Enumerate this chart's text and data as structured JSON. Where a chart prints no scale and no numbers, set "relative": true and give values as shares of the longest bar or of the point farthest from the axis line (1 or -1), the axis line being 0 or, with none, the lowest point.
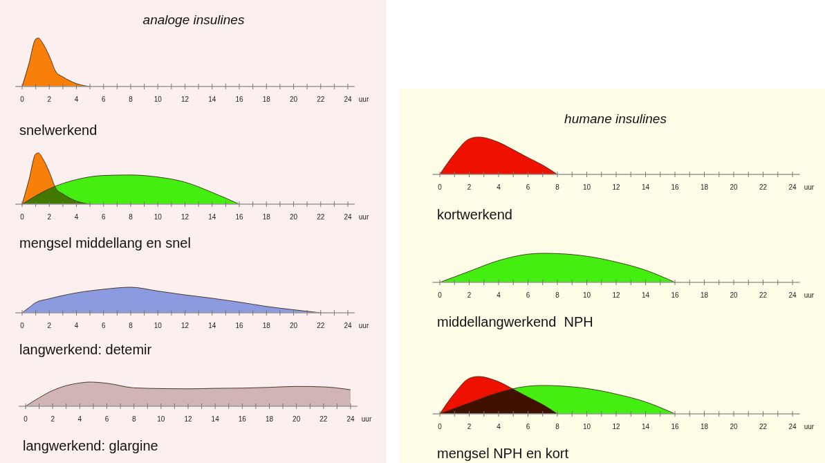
{
  "chart_data": [
    {
      "type": "area",
      "title": "analoge insulines",
      "subtitle": "snelwerkend",
      "xlabel": "uur",
      "relative": true,
      "xlim": [
        -0.5,
        24.5
      ],
      "xticks": [
        0,
        {
          "value": 1,
          "label": null
        },
        2,
        {
          "value": 3,
          "label": null
        },
        4,
        {
          "value": 5,
          "label": null
        },
        6,
        {
          "value": 7,
          "label": null
        },
        8,
        {
          "value": 9,
          "label": null
        },
        10,
        {
          "value": 11,
          "label": null
        },
        12,
        {
          "value": 13,
          "label": null
        },
        14,
        {
          "value": 15,
          "label": null
        },
        16,
        {
          "value": 17,
          "label": null
        },
        18,
        {
          "value": 19,
          "label": null
        },
        20,
        {
          "value": 21,
          "label": null
        },
        22,
        {
          "value": 23,
          "label": null
        },
        24
      ],
      "series": [
        {
          "color": "#f77f0a",
          "x": [
            0,
            0.5,
            1,
            1.2,
            1.5,
            2,
            2.5,
            3,
            4,
            5
          ],
          "values": [
            0,
            0.47,
            0.98,
            1,
            0.9,
            0.63,
            0.3,
            0.2,
            0.06,
            0
          ]
        }
      ]
    },
    {
      "type": "area",
      "subtitle": "mengsel middellang en snel",
      "xlabel": "uur",
      "relative": true,
      "xlim": [
        -0.5,
        24.5
      ],
      "xticks": [
        0,
        {
          "value": 1,
          "label": null
        },
        2,
        {
          "value": 3,
          "label": null
        },
        4,
        {
          "value": 5,
          "label": null
        },
        6,
        {
          "value": 7,
          "label": null
        },
        8,
        {
          "value": 9,
          "label": null
        },
        10,
        {
          "value": 11,
          "label": null
        },
        12,
        {
          "value": 13,
          "label": null
        },
        14,
        {
          "value": 15,
          "label": null
        },
        16,
        {
          "value": 17,
          "label": null
        },
        18,
        {
          "value": 19,
          "label": null
        },
        20,
        {
          "value": 21,
          "label": null
        },
        22,
        {
          "value": 23,
          "label": null
        },
        24
      ],
      "series": [
        {
          "color": "#f77f0a",
          "x": [
            0,
            0.5,
            1,
            1.2,
            1.5,
            2,
            2.5,
            3,
            4,
            5
          ],
          "values": [
            0,
            0.47,
            0.98,
            1,
            0.9,
            0.63,
            0.3,
            0.2,
            0.06,
            0
          ]
        },
        {
          "color": "#44ee11",
          "x": [
            0,
            2,
            4,
            6,
            8,
            10,
            12,
            14,
            16
          ],
          "values": [
            0,
            0.3,
            0.48,
            0.56,
            0.57,
            0.53,
            0.43,
            0.23,
            0
          ]
        }
      ]
    },
    {
      "type": "area",
      "subtitle": "langwerkend: detemir",
      "xlabel": "uur",
      "relative": true,
      "xlim": [
        -0.5,
        24.5
      ],
      "xticks": [
        0,
        {
          "value": 1,
          "label": null
        },
        2,
        {
          "value": 3,
          "label": null
        },
        4,
        {
          "value": 5,
          "label": null
        },
        6,
        {
          "value": 7,
          "label": null
        },
        8,
        {
          "value": 9,
          "label": null
        },
        10,
        {
          "value": 11,
          "label": null
        },
        12,
        {
          "value": 13,
          "label": null
        },
        14,
        {
          "value": 15,
          "label": null
        },
        16,
        {
          "value": 17,
          "label": null
        },
        18,
        {
          "value": 19,
          "label": null
        },
        20,
        {
          "value": 21,
          "label": null
        },
        22,
        {
          "value": 23,
          "label": null
        },
        24
      ],
      "series": [
        {
          "color": "#8c9be0",
          "x": [
            0,
            0.5,
            1,
            2,
            4,
            6,
            8,
            10,
            12,
            14,
            16,
            18,
            20,
            22
          ],
          "values": [
            0,
            0.2,
            0.4,
            0.55,
            0.78,
            0.92,
            1,
            0.85,
            0.7,
            0.57,
            0.42,
            0.25,
            0.12,
            0
          ]
        }
      ]
    },
    {
      "type": "area",
      "subtitle": "langwerkend: glargine",
      "xlabel": "uur",
      "relative": true,
      "xlim": [
        -0.5,
        24.5
      ],
      "xticks": [
        0,
        {
          "value": 1,
          "label": null
        },
        2,
        {
          "value": 3,
          "label": null
        },
        4,
        {
          "value": 5,
          "label": null
        },
        6,
        {
          "value": 7,
          "label": null
        },
        8,
        {
          "value": 9,
          "label": null
        },
        10,
        {
          "value": 11,
          "label": null
        },
        12,
        {
          "value": 13,
          "label": null
        },
        14,
        {
          "value": 15,
          "label": null
        },
        16,
        {
          "value": 17,
          "label": null
        },
        18,
        {
          "value": 19,
          "label": null
        },
        20,
        {
          "value": 21,
          "label": null
        },
        22,
        {
          "value": 23,
          "label": null
        },
        24
      ],
      "series": [
        {
          "color": "#d1b4b4",
          "x": [
            0,
            1,
            2,
            3,
            4,
            4.7,
            6,
            8,
            10,
            12,
            14,
            16,
            18,
            20,
            22,
            24
          ],
          "values": [
            0,
            0.35,
            0.65,
            0.85,
            0.96,
            1,
            0.95,
            0.76,
            0.73,
            0.72,
            0.74,
            0.75,
            0.78,
            0.82,
            0.8,
            0.68
          ]
        }
      ]
    },
    {
      "type": "area",
      "title": "humane insulines",
      "subtitle": "kortwerkend",
      "xlabel": "uur",
      "relative": true,
      "xlim": [
        -0.5,
        24.5
      ],
      "xticks": [
        0,
        {
          "value": 1,
          "label": null
        },
        2,
        {
          "value": 3,
          "label": null
        },
        4,
        {
          "value": 5,
          "label": null
        },
        6,
        {
          "value": 7,
          "label": null
        },
        8,
        {
          "value": 9,
          "label": null
        },
        10,
        {
          "value": 11,
          "label": null
        },
        12,
        {
          "value": 13,
          "label": null
        },
        14,
        {
          "value": 15,
          "label": null
        },
        16,
        {
          "value": 17,
          "label": null
        },
        18,
        {
          "value": 19,
          "label": null
        },
        20,
        {
          "value": 21,
          "label": null
        },
        22,
        {
          "value": 23,
          "label": null
        },
        24
      ],
      "series": [
        {
          "color": "#ee1100",
          "x": [
            0,
            1,
            2,
            2.6,
            4,
            5,
            6,
            7,
            8
          ],
          "values": [
            0,
            0.55,
            0.95,
            1,
            0.86,
            0.66,
            0.45,
            0.25,
            0
          ]
        }
      ]
    },
    {
      "type": "area",
      "subtitle": "middellangwerkend  NPH",
      "xlabel": "uur",
      "relative": true,
      "xlim": [
        -0.5,
        24.5
      ],
      "xticks": [
        0,
        {
          "value": 1,
          "label": null
        },
        2,
        {
          "value": 3,
          "label": null
        },
        4,
        {
          "value": 5,
          "label": null
        },
        6,
        {
          "value": 7,
          "label": null
        },
        8,
        {
          "value": 9,
          "label": null
        },
        10,
        {
          "value": 11,
          "label": null
        },
        12,
        {
          "value": 13,
          "label": null
        },
        14,
        {
          "value": 15,
          "label": null
        },
        16,
        {
          "value": 17,
          "label": null
        },
        18,
        {
          "value": 19,
          "label": null
        },
        20,
        {
          "value": 21,
          "label": null
        },
        22,
        {
          "value": 23,
          "label": null
        },
        24
      ],
      "series": [
        {
          "color": "#44ee11",
          "x": [
            0,
            2,
            4,
            6,
            7,
            8,
            10,
            12,
            14,
            16
          ],
          "values": [
            0,
            0.38,
            0.75,
            0.97,
            1,
            0.99,
            0.9,
            0.7,
            0.42,
            0
          ]
        }
      ]
    },
    {
      "type": "area",
      "subtitle": "mengsel NPH en kort",
      "xlabel": "uur",
      "relative": true,
      "xlim": [
        -0.5,
        24.5
      ],
      "xticks": [
        0,
        {
          "value": 1,
          "label": null
        },
        2,
        {
          "value": 3,
          "label": null
        },
        4,
        {
          "value": 5,
          "label": null
        },
        6,
        {
          "value": 7,
          "label": null
        },
        8,
        {
          "value": 9,
          "label": null
        },
        10,
        {
          "value": 11,
          "label": null
        },
        12,
        {
          "value": 13,
          "label": null
        },
        14,
        {
          "value": 15,
          "label": null
        },
        16,
        {
          "value": 17,
          "label": null
        },
        18,
        {
          "value": 19,
          "label": null
        },
        20,
        {
          "value": 21,
          "label": null
        },
        22,
        {
          "value": 23,
          "label": null
        },
        24
      ],
      "series": [
        {
          "color": "#ee1100",
          "x": [
            0,
            1,
            2,
            2.6,
            4,
            5,
            6,
            7,
            8
          ],
          "values": [
            0,
            0.55,
            0.95,
            1,
            0.86,
            0.66,
            0.45,
            0.25,
            0
          ]
        },
        {
          "color": "#44ee11",
          "x": [
            0,
            2,
            4,
            6,
            7,
            8,
            10,
            12,
            14,
            16
          ],
          "values": [
            0,
            0.29,
            0.57,
            0.74,
            0.76,
            0.75,
            0.68,
            0.53,
            0.32,
            0
          ]
        }
      ]
    }
  ]
}
